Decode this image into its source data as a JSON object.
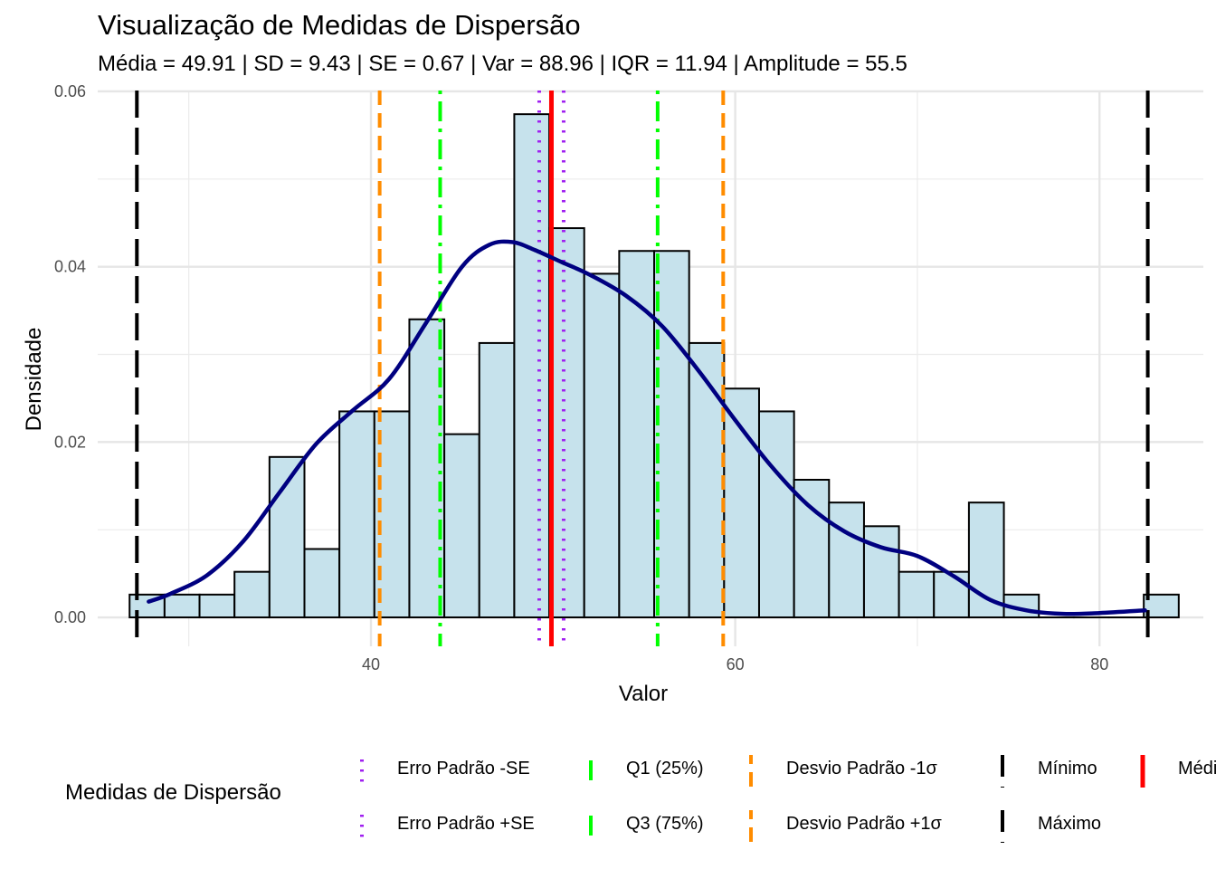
{
  "chart_data": {
    "type": "histogram",
    "title": "Visualização de Medidas de Dispersão",
    "subtitle": "Média = 49.91 | SD = 9.43 | SE = 0.67 | Var = 88.96 | IQR = 11.94 | Amplitude = 55.5",
    "xlabel": "Valor",
    "ylabel": "Densidade",
    "xlim": [
      25.0,
      85.7
    ],
    "ylim": [
      -0.0033,
      0.0601
    ],
    "x_ticks": [
      40,
      60,
      80
    ],
    "x_tick_labels": [
      "40",
      "60",
      "80"
    ],
    "y_ticks": [
      0.0,
      0.02,
      0.04,
      0.06
    ],
    "y_tick_labels": [
      "0.00",
      "0.02",
      "0.04",
      "0.06"
    ],
    "grid": true,
    "bin_width": 1.92,
    "bins_start": 26.75,
    "bars": [
      0.0026,
      0.0026,
      0.0026,
      0.0052,
      0.0183,
      0.0078,
      0.0235,
      0.0235,
      0.034,
      0.0209,
      0.0313,
      0.0574,
      0.0444,
      0.0392,
      0.0418,
      0.0418,
      0.0313,
      0.0261,
      0.0235,
      0.0157,
      0.0131,
      0.0104,
      0.0052,
      0.0052,
      0.0131,
      0.0026,
      0.0,
      0.0,
      0.0,
      0.0026
    ],
    "bar_fill": "#c6e2ec",
    "bar_stroke": "#000000",
    "density": {
      "color": "#000080",
      "x": [
        27.8,
        29,
        31,
        33,
        35,
        37,
        39,
        41,
        43,
        45,
        46.5,
        47.8,
        49,
        50.5,
        52,
        54,
        56,
        58,
        60,
        62,
        64,
        66,
        68,
        70,
        72,
        74,
        76,
        78,
        80,
        82.5
      ],
      "y": [
        0.0018,
        0.0027,
        0.0048,
        0.0087,
        0.0143,
        0.0198,
        0.0236,
        0.0272,
        0.0335,
        0.04,
        0.0425,
        0.0428,
        0.0419,
        0.0405,
        0.0391,
        0.0367,
        0.0332,
        0.0281,
        0.0225,
        0.0172,
        0.0128,
        0.0098,
        0.008,
        0.007,
        0.0047,
        0.002,
        0.0008,
        0.0004,
        0.0005,
        0.0008
      ]
    },
    "vlines": [
      {
        "name": "Erro Padrão -SE",
        "x": 49.24,
        "color": "#a020f0",
        "style": "dotted"
      },
      {
        "name": "Erro Padrão +SE",
        "x": 50.58,
        "color": "#a020f0",
        "style": "dotted"
      },
      {
        "name": "Q1 (25%)",
        "x": 43.8,
        "color": "#00ff00",
        "style": "dotdash"
      },
      {
        "name": "Q3 (75%)",
        "x": 55.74,
        "color": "#00ff00",
        "style": "dotdash"
      },
      {
        "name": "Desvio Padrão -1σ",
        "x": 40.48,
        "color": "#ff8c00",
        "style": "dashed"
      },
      {
        "name": "Desvio Padrão +1σ",
        "x": 59.34,
        "color": "#ff8c00",
        "style": "dashed"
      },
      {
        "name": "Mínimo",
        "x": 27.15,
        "color": "#000000",
        "style": "longdash"
      },
      {
        "name": "Máximo",
        "x": 82.65,
        "color": "#000000",
        "style": "longdash"
      },
      {
        "name": "Média",
        "x": 49.91,
        "color": "#ff0000",
        "style": "solid"
      }
    ],
    "legend": {
      "title": "Medidas de Dispersão",
      "position": "bottom",
      "items": [
        "Erro Padrão -SE",
        "Erro Padrão +SE",
        "Q1 (25%)",
        "Q3 (75%)",
        "Desvio Padrão -1σ",
        "Desvio Padrão +1σ",
        "Mínimo",
        "Máximo",
        "Média"
      ]
    }
  }
}
